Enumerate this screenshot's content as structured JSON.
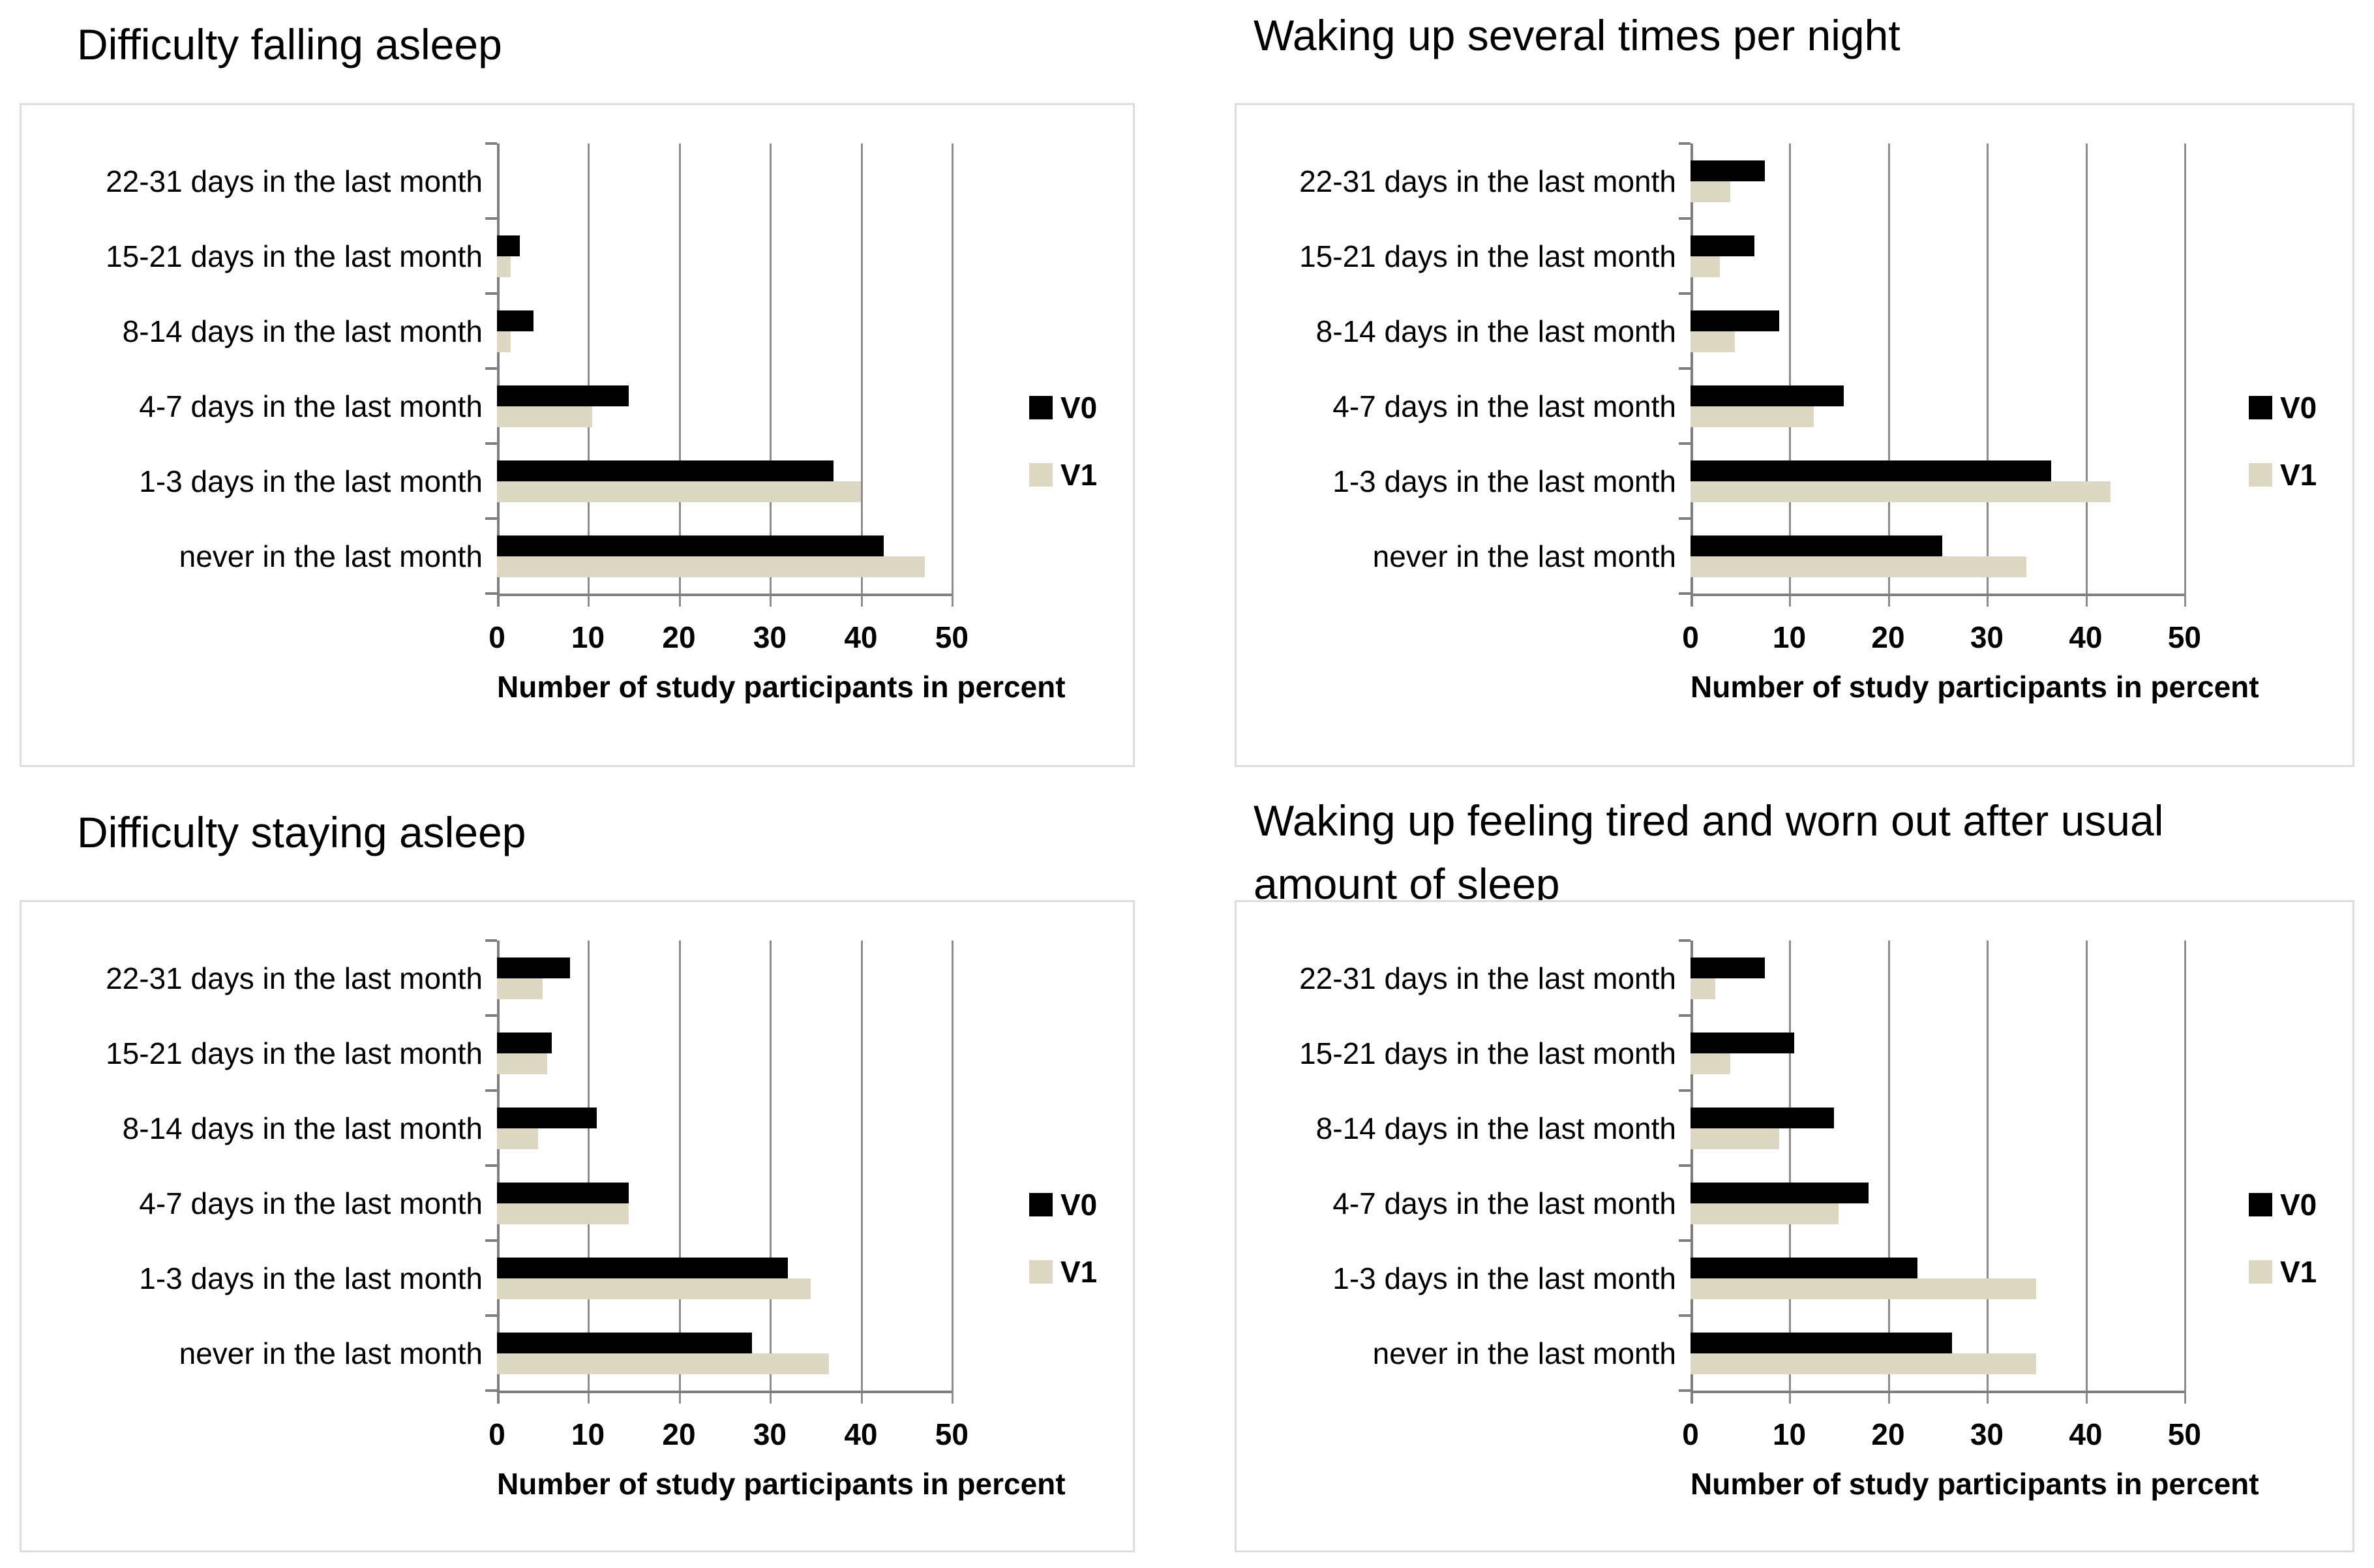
{
  "page": {
    "background": "#ffffff",
    "description": "Four horizontal grouped bar charts comparing V0 and V1 sleep questionnaire answers"
  },
  "shared": {
    "series_names": [
      "V0",
      "V1"
    ],
    "categories": [
      "22-31 days in the last month",
      "15-21 days in the last month",
      "8-14 days in the last month",
      "4-7 days in the last month",
      "1-3 days in the last month",
      "never in the last month"
    ],
    "x_axis": {
      "ticks": [
        "0",
        "10",
        "20",
        "30",
        "40",
        "50"
      ],
      "tick_values": [
        0,
        10,
        20,
        30,
        40,
        50
      ],
      "label": "Number of study participants in percent",
      "min": 0,
      "max": 50
    },
    "colors": {
      "v0_bar": "#000000",
      "v1_bar": "#ddd8c3",
      "gridline": "#8c8c8c",
      "axis": "#7f7f7f",
      "panel_border": "#dcdcdc",
      "text": "#000000"
    },
    "legend": {
      "position": "right",
      "labels": [
        "V0",
        "V1"
      ]
    }
  },
  "chart_data": [
    {
      "type": "bar",
      "orientation": "horizontal",
      "title": "Difficulty falling asleep",
      "categories": [
        "22-31 days in the last month",
        "15-21 days in the last month",
        "8-14 days in the last month",
        "4-7 days in the last month",
        "1-3 days in the last month",
        "never in the last month"
      ],
      "series": [
        {
          "name": "V0",
          "values": [
            0,
            2.5,
            4,
            14.5,
            37,
            42.5
          ]
        },
        {
          "name": "V1",
          "values": [
            0,
            1.5,
            1.5,
            10.5,
            40,
            47
          ]
        }
      ],
      "xlabel": "Number of study participants in percent",
      "xlim": [
        0,
        50
      ],
      "grid": true,
      "legend_position": "right"
    },
    {
      "type": "bar",
      "orientation": "horizontal",
      "title": "Waking up several times per night",
      "categories": [
        "22-31 days in the last month",
        "15-21 days in the last month",
        "8-14 days in the last month",
        "4-7 days in the last month",
        "1-3 days in the last month",
        "never in the last month"
      ],
      "series": [
        {
          "name": "V0",
          "values": [
            7.5,
            6.5,
            9,
            15.5,
            36.5,
            25.5
          ]
        },
        {
          "name": "V1",
          "values": [
            4,
            3,
            4.5,
            12.5,
            42.5,
            34
          ]
        }
      ],
      "xlabel": "Number of study participants in percent",
      "xlim": [
        0,
        50
      ],
      "grid": true,
      "legend_position": "right"
    },
    {
      "type": "bar",
      "orientation": "horizontal",
      "title": "Difficulty staying asleep",
      "categories": [
        "22-31 days in the last month",
        "15-21 days in the last month",
        "8-14 days in the last month",
        "4-7 days in the last month",
        "1-3 days in the last month",
        "never in the last month"
      ],
      "series": [
        {
          "name": "V0",
          "values": [
            8,
            6,
            11,
            14.5,
            32,
            28
          ]
        },
        {
          "name": "V1",
          "values": [
            5,
            5.5,
            4.5,
            14.5,
            34.5,
            36.5
          ]
        }
      ],
      "xlabel": "Number of study participants in percent",
      "xlim": [
        0,
        50
      ],
      "grid": true,
      "legend_position": "right"
    },
    {
      "type": "bar",
      "orientation": "horizontal",
      "title": "Waking up feeling tired and worn out after usual amount of sleep",
      "categories": [
        "22-31 days in the last month",
        "15-21 days in the last month",
        "8-14 days in the last month",
        "4-7 days in the last month",
        "1-3 days in the last month",
        "never in the last month"
      ],
      "series": [
        {
          "name": "V0",
          "values": [
            7.5,
            10.5,
            14.5,
            18,
            23,
            26.5
          ]
        },
        {
          "name": "V1",
          "values": [
            2.5,
            4,
            9,
            15,
            35,
            35
          ]
        }
      ],
      "xlabel": "Number of study participants in percent",
      "xlim": [
        0,
        50
      ],
      "grid": true,
      "legend_position": "right"
    }
  ]
}
